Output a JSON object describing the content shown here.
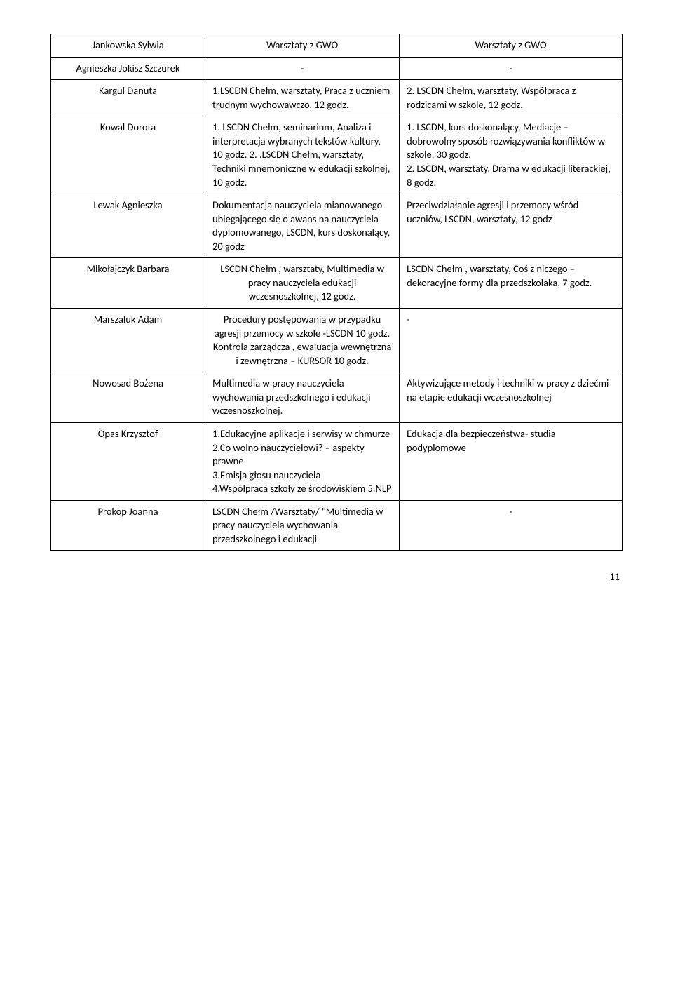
{
  "rows": [
    {
      "name": "Jankowska Sylwia",
      "c2": "Warsztaty z GWO",
      "c3": "Warsztaty z GWO",
      "c2cls": "center",
      "c3cls": "center"
    },
    {
      "name": "Agnieszka Jokisz Szczurek",
      "c2": "-",
      "c3": "-",
      "c2cls": "center",
      "c3cls": "center"
    },
    {
      "name": "Kargul Danuta",
      "c2": "1.LSCDN Chełm, warsztaty, Praca z uczniem trudnym wychowawczo, 12 godz.",
      "c3": "2. LSCDN Chełm, warsztaty, Współpraca z rodzicami w szkole, 12 godz.",
      "c2cls": "",
      "c3cls": ""
    },
    {
      "name": "Kowal Dorota",
      "c2": "1. LSCDN Chełm, seminarium, Analiza i interpretacja wybranych tekstów kultury, 10 godz. 2. .LSCDN Chełm, warsztaty, Techniki mnemoniczne w edukacji szkolnej, 10 godz.",
      "c3": "1. LSCDN, kurs doskonalący, Mediacje – dobrowolny sposób rozwiązywania konfliktów w szkole, 30 godz.\n2. LSCDN, warsztaty,  Drama w edukacji literackiej, 8 godz.",
      "c2cls": "",
      "c3cls": ""
    },
    {
      "name": "Lewak Agnieszka",
      "c2": "Dokumentacja nauczyciela mianowanego ubiegającego się o awans na nauczyciela dyplomowanego, LSCDN, kurs doskonalący, 20 godz",
      "c3": "Przeciwdziałanie agresji i przemocy wśród uczniów, LSCDN, warsztaty, 12 godz",
      "c2cls": "",
      "c3cls": ""
    },
    {
      "name": "Mikołajczyk Barbara",
      "c2": "LSCDN Chełm , warsztaty, Multimedia w pracy nauczyciela edukacji wczesnoszkolnej, 12 godz.",
      "c3": "LSCDN Chełm , warsztaty, Coś z niczego – dekoracyjne formy dla przedszkolaka, 7 godz.",
      "c2cls": "center",
      "c3cls": ""
    },
    {
      "name": "Marszaluk Adam",
      "c2": "Procedury postępowania w przypadku agresji przemocy w szkole -LSCDN 10 godz. Kontrola zarządcza , ewaluacja wewnętrzna i zewnętrzna – KURSOR 10 godz.",
      "c3": "-",
      "c2cls": "center",
      "c3cls": ""
    },
    {
      "name": "Nowosad Bożena",
      "c2": "Multimedia w pracy nauczyciela wychowania przedszkolnego i edukacji wczesnoszkolnej.",
      "c3": "Aktywizujące metody i techniki w pracy z dziećmi na etapie edukacji wczesnoszkolnej",
      "c2cls": "",
      "c3cls": ""
    },
    {
      "name": "Opas Krzysztof",
      "c2": "1.Edukacyjne aplikacje i serwisy w chmurze\n2.Co wolno nauczycielowi? – aspekty prawne\n3.Emisja głosu nauczyciela\n4.Współpraca szkoły ze środowiskiem 5.NLP",
      "c3": "Edukacja dla bezpieczeństwa- studia podyplomowe",
      "c2cls": "",
      "c3cls": ""
    },
    {
      "name": "Prokop Joanna",
      "c2": "LSCDN Chełm /Warsztaty/ \"Multimedia w pracy nauczyciela wychowania przedszkolnego i edukacji",
      "c3": "-",
      "c2cls": "",
      "c3cls": "center"
    }
  ],
  "page_number": "11"
}
